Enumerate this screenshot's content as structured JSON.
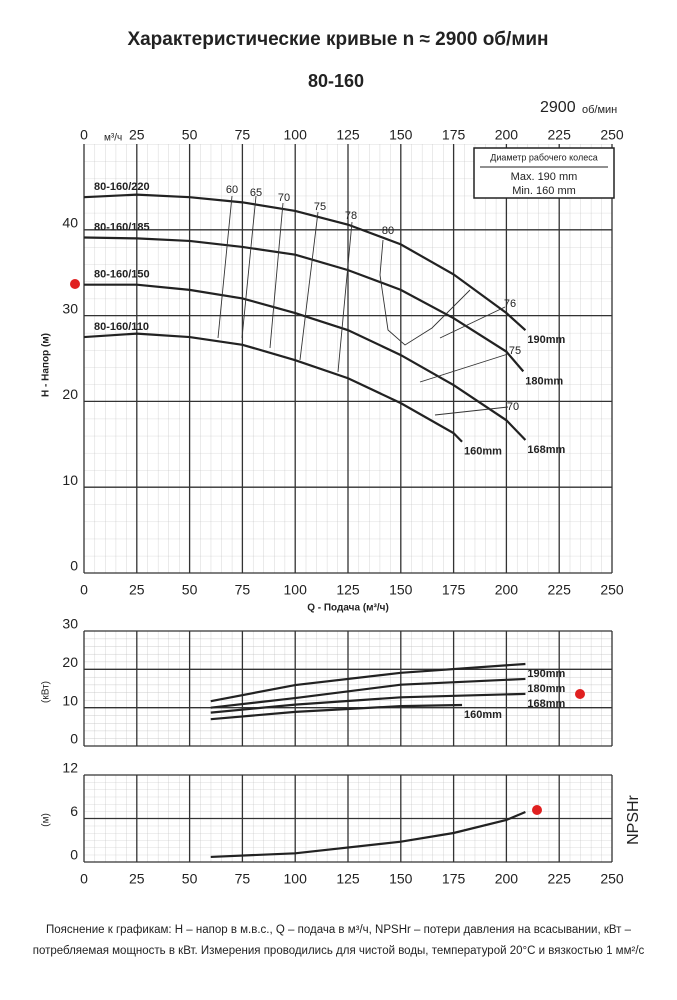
{
  "page_title": "Характеристические кривые n ≈ 2900 об/мин",
  "speed_value": 2900,
  "speed_unit": "об/мин",
  "footnote": "Пояснение к графикам: H – напор в м.в.с., Q – подача в м³/ч, NPSHr – потери давления на всасывании, кВт – потребляемая мощность в кВт. Измерения проводились для чистой воды, температурой 20°С и вязкостью 1 мм²/с",
  "chart_data": [
    {
      "type": "line",
      "title": "80-160",
      "xlabel": "Q - Подача (м³/ч)",
      "ylabel": "H - Напор (м)",
      "x_unit_top": "м³/ч",
      "xlim": [
        0,
        250
      ],
      "ylim": [
        0,
        50
      ],
      "xticks": [
        0,
        25,
        50,
        75,
        100,
        125,
        150,
        175,
        200,
        225,
        250
      ],
      "yticks": [
        0,
        10,
        20,
        30,
        40
      ],
      "xtick_positions": [
        "top",
        "bottom"
      ],
      "grid": true,
      "color": "#222222",
      "legend_title": "Диаметр рабочего колеса",
      "legend_entries": [
        "Max. 190 mm",
        "Min. 160 mm"
      ],
      "efficiency_labels": [
        60,
        65,
        70,
        75,
        78,
        80,
        76,
        75,
        70
      ],
      "series": [
        {
          "name": "80-160/220",
          "end_label": "190mm",
          "x": [
            0,
            25,
            50,
            75,
            100,
            125,
            150,
            175,
            200,
            209
          ],
          "values": [
            43.8,
            44.1,
            43.8,
            43.2,
            42.2,
            40.6,
            38.3,
            34.8,
            30.3,
            28.3
          ]
        },
        {
          "name": "80-160/185",
          "end_label": "180mm",
          "x": [
            0,
            25,
            50,
            75,
            100,
            125,
            150,
            175,
            200,
            208
          ],
          "values": [
            39.1,
            39.0,
            38.7,
            38.0,
            37.1,
            35.3,
            33.0,
            29.7,
            25.8,
            23.5
          ]
        },
        {
          "name": "80-160/150",
          "end_label": "168mm",
          "x": [
            0,
            25,
            50,
            75,
            100,
            125,
            150,
            175,
            200,
            209
          ],
          "values": [
            33.6,
            33.6,
            33.0,
            32.0,
            30.3,
            28.3,
            25.4,
            21.9,
            17.8,
            15.5
          ]
        },
        {
          "name": "80-160/110",
          "end_label": "160mm",
          "x": [
            0,
            25,
            50,
            75,
            100,
            125,
            150,
            175,
            179
          ],
          "values": [
            27.5,
            27.9,
            27.5,
            26.6,
            24.8,
            22.7,
            19.8,
            16.3,
            15.3
          ]
        }
      ]
    },
    {
      "type": "line",
      "ylabel": "(кВт)",
      "xlim": [
        0,
        250
      ],
      "ylim": [
        0,
        30
      ],
      "xticks": [
        0,
        25,
        50,
        75,
        100,
        125,
        150,
        175,
        200,
        225,
        250
      ],
      "yticks": [
        0,
        10,
        20,
        30
      ],
      "xtick_positions": [],
      "grid": true,
      "color": "#222222",
      "series": [
        {
          "end_label": "190mm",
          "x": [
            60,
            100,
            150,
            209
          ],
          "values": [
            11.7,
            15.9,
            19.1,
            21.4
          ]
        },
        {
          "end_label": "180mm",
          "x": [
            60,
            100,
            150,
            209
          ],
          "values": [
            10.0,
            12.5,
            16.0,
            17.5
          ]
        },
        {
          "end_label": "168mm",
          "x": [
            60,
            100,
            150,
            209
          ],
          "values": [
            8.7,
            10.8,
            12.7,
            13.6
          ]
        },
        {
          "end_label": "160mm",
          "x": [
            60,
            100,
            150,
            179
          ],
          "values": [
            7.0,
            8.9,
            10.4,
            10.7
          ]
        }
      ]
    },
    {
      "type": "line",
      "ylabel": "(м)",
      "side_label": "NPSHr",
      "xlim": [
        0,
        250
      ],
      "ylim": [
        0,
        12
      ],
      "xticks": [
        0,
        25,
        50,
        75,
        100,
        125,
        150,
        175,
        200,
        225,
        250
      ],
      "yticks": [
        0,
        6,
        12
      ],
      "xtick_positions": [
        "bottom"
      ],
      "grid": true,
      "color": "#222222",
      "series": [
        {
          "x": [
            60,
            100,
            150,
            175,
            200,
            209
          ],
          "values": [
            0.7,
            1.2,
            2.8,
            4.0,
            5.8,
            6.9
          ]
        }
      ]
    }
  ]
}
